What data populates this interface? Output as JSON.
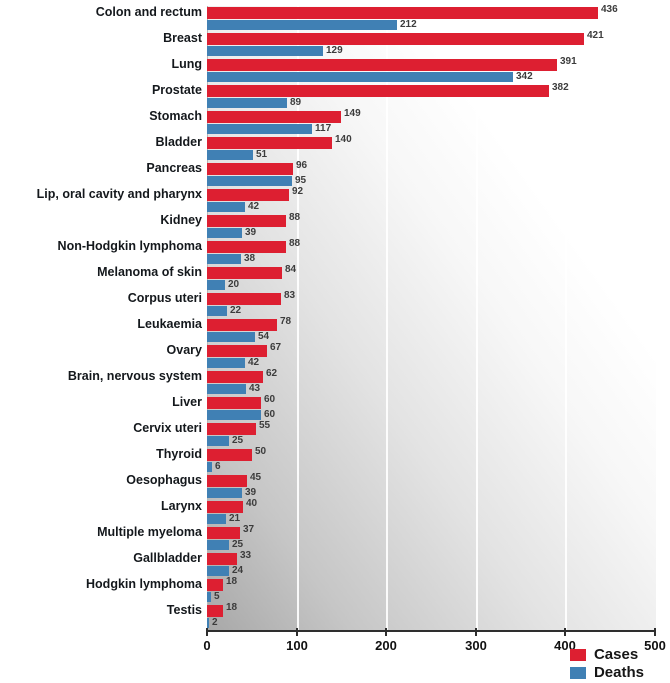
{
  "chart_data": {
    "type": "bar",
    "orientation": "horizontal",
    "title": "",
    "xlabel": "",
    "ylabel": "",
    "xlim": [
      0,
      500
    ],
    "x_ticks": [
      0,
      100,
      200,
      300,
      400,
      500
    ],
    "gridlines": [
      100,
      200,
      300,
      400
    ],
    "grid": "vertical-white-lines",
    "legend_position": "bottom-right",
    "categories": [
      "Colon and rectum",
      "Breast",
      "Lung",
      "Prostate",
      "Stomach",
      "Bladder",
      "Pancreas",
      "Lip, oral cavity and pharynx",
      "Kidney",
      "Non-Hodgkin lymphoma",
      "Melanoma of skin",
      "Corpus uteri",
      "Leukaemia",
      "Ovary",
      "Brain, nervous system",
      "Liver",
      "Cervix uteri",
      "Thyroid",
      "Oesophagus",
      "Larynx",
      "Multiple myeloma",
      "Gallbladder",
      "Hodgkin lymphoma",
      "Testis"
    ],
    "series": [
      {
        "name": "Cases",
        "color": "#dd1f31",
        "values": [
          436,
          421,
          391,
          382,
          149,
          140,
          96,
          92,
          88,
          88,
          84,
          83,
          78,
          67,
          62,
          60,
          55,
          50,
          45,
          40,
          37,
          33,
          18,
          18
        ]
      },
      {
        "name": "Deaths",
        "color": "#4080b4",
        "values": [
          212,
          129,
          342,
          89,
          117,
          51,
          95,
          42,
          39,
          38,
          20,
          22,
          54,
          42,
          43,
          60,
          25,
          6,
          39,
          21,
          25,
          24,
          5,
          2
        ]
      }
    ]
  }
}
